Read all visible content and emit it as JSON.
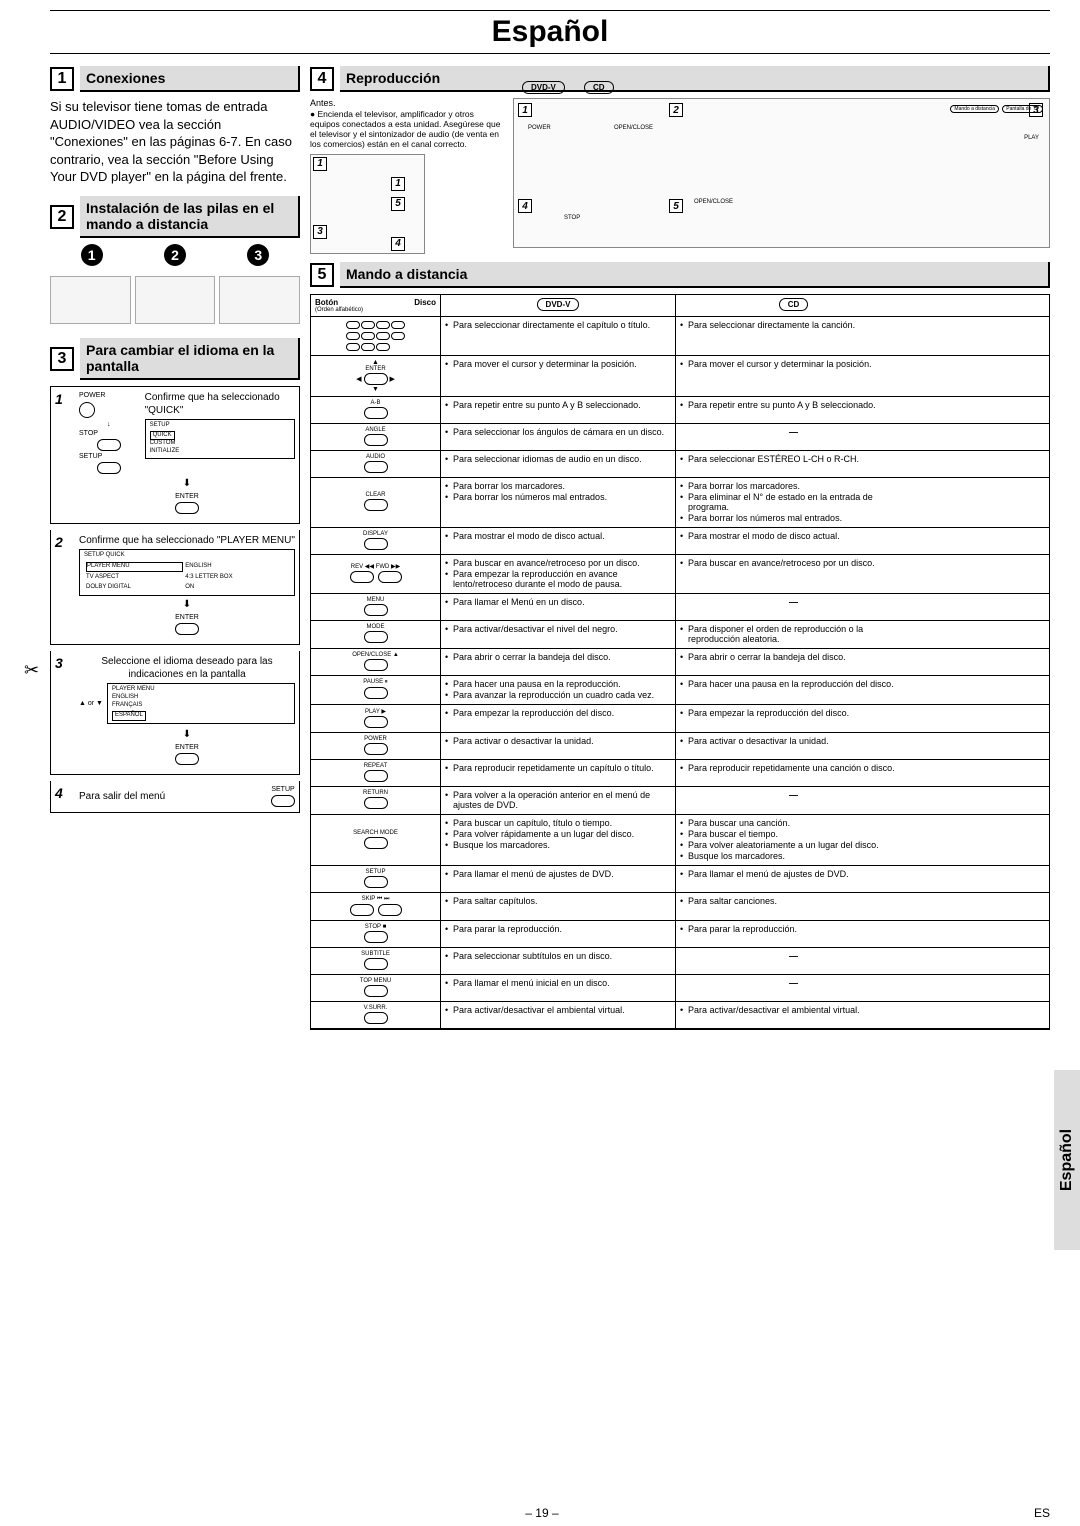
{
  "page_title": "Español",
  "page_number": "– 19 –",
  "lang_code": "ES",
  "side_tab": "Español",
  "sec1": {
    "title": "Conexiones",
    "body": "Si su televisor tiene tomas de entrada AUDIO/VIDEO vea la sección \"Conexiones\" en las páginas 6-7. En caso contrario, vea la sección \"Before Using Your DVD player\" en la página del frente."
  },
  "sec2": {
    "title": "Instalación de las pilas en el mando a distancia"
  },
  "sec3": {
    "title": "Para cambiar el idioma en la pantalla",
    "step1": "Confirme que ha seleccionado \"QUICK\"",
    "menu1_items": [
      "QUICK",
      "CUSTOM",
      "INITIALIZE"
    ],
    "step2": "Confirme que ha seleccionado \"PLAYER MENU\"",
    "menu2_header": "SETUP   QUICK",
    "menu2_rows": [
      [
        "PLAYER MENU",
        "ENGLISH"
      ],
      [
        "TV ASPECT",
        "4:3 LETTER BOX"
      ],
      [
        "DOLBY DIGITAL",
        "ON"
      ]
    ],
    "step3": "Seleccione el idioma deseado para las indicaciones en la pantalla",
    "menu3_header": "PLAYER MENU",
    "menu3_items": [
      "ENGLISH",
      "FRANÇAIS",
      "ESPAÑOL"
    ],
    "step4": "Para salir del menú",
    "labels": {
      "power": "POWER",
      "stop": "STOP",
      "setup": "SETUP",
      "enter": "ENTER",
      "or": "or"
    }
  },
  "sec4": {
    "title": "Reproducción",
    "antes": "Antes.",
    "intro": "Encienda el televisor, amplificador y otros equipos conectados a esta unidad. Asegúrese que el televisor y el sintonizador de audio (de venta en los comercios) están en el canal correcto.",
    "badges": {
      "dvd": "DVD-V",
      "cd": "CD"
    },
    "fig_labels": {
      "power": "POWER",
      "openclose": "OPEN/CLOSE",
      "play": "PLAY",
      "stop": "STOP",
      "remote": "Mando a distancia",
      "tv": "Pantalla de TV"
    }
  },
  "sec5": {
    "title": "Mando a distancia",
    "th_boton": "Botón",
    "th_boton_sub": "(Orden alfabético)",
    "th_disco": "Disco",
    "dvd_label": "DVD-V",
    "cd_label": "CD",
    "rows": [
      {
        "btn_label": "0-9 +10",
        "btn_icon_count": 11,
        "btn_type": "keypad",
        "dvd": [
          "Para seleccionar directamente el capítulo o título."
        ],
        "cd": [
          "Para seleccionar directamente la canción."
        ]
      },
      {
        "btn_label": "▲ ENTER ▼ ◀ ▶",
        "btn_type": "dpad",
        "dvd": [
          "Para mover el cursor y determinar la posición."
        ],
        "cd": [
          "Para mover el cursor y determinar la posición."
        ]
      },
      {
        "btn_label": "A-B",
        "dvd": [
          "Para repetir entre su punto A y B seleccionado."
        ],
        "cd": [
          "Para repetir entre su punto A y B seleccionado."
        ]
      },
      {
        "btn_label": "ANGLE",
        "dvd": [
          "Para seleccionar los ángulos de cámara en un disco."
        ],
        "cd": "—"
      },
      {
        "btn_label": "AUDIO",
        "dvd": [
          "Para seleccionar idiomas de audio en un disco."
        ],
        "cd": [
          "Para seleccionar ESTÉREO L-CH o R-CH."
        ]
      },
      {
        "btn_label": "CLEAR",
        "dvd": [
          "Para borrar los marcadores.",
          "Para borrar los números mal entrados."
        ],
        "cd": [
          "Para borrar los marcadores.",
          "Para eliminar el N° de estado en la entrada de programa.",
          "Para borrar los números mal entrados."
        ]
      },
      {
        "btn_label": "DISPLAY",
        "dvd": [
          "Para mostrar el modo de disco actual."
        ],
        "cd": [
          "Para mostrar el modo de disco actual."
        ]
      },
      {
        "btn_label": "REV ◀◀  FWD ▶▶",
        "btn_type": "pair",
        "dvd": [
          "Para buscar en avance/retroceso por un disco.",
          "Para empezar la reproducción en avance lento/retroceso durante el modo de pausa."
        ],
        "cd": [
          "Para buscar en avance/retroceso por un disco."
        ]
      },
      {
        "btn_label": "MENU",
        "dvd": [
          "Para llamar el Menú en un disco."
        ],
        "cd": "—"
      },
      {
        "btn_label": "MODE",
        "dvd": [
          "Para activar/desactivar el nivel del negro."
        ],
        "cd": [
          "Para disponer el orden de reproducción o la reproducción aleatoria."
        ]
      },
      {
        "btn_label": "OPEN/CLOSE ▲",
        "dvd": [
          "Para abrir o cerrar la bandeja del disco."
        ],
        "cd": [
          "Para abrir o cerrar la bandeja del disco."
        ]
      },
      {
        "btn_label": "PAUSE ⏸",
        "dvd": [
          "Para hacer una pausa en la reproducción.",
          "Para avanzar la reproducción un cuadro cada vez."
        ],
        "cd": [
          "Para hacer una pausa en la reproducción del disco."
        ]
      },
      {
        "btn_label": "PLAY ▶",
        "dvd": [
          "Para empezar la reproducción del disco."
        ],
        "cd": [
          "Para empezar la reproducción del disco."
        ]
      },
      {
        "btn_label": "POWER",
        "dvd": [
          "Para activar o desactivar la unidad."
        ],
        "cd": [
          "Para activar o desactivar la unidad."
        ]
      },
      {
        "btn_label": "REPEAT",
        "dvd": [
          "Para reproducir repetidamente un capítulo o título."
        ],
        "cd": [
          "Para reproducir repetidamente una canción o disco."
        ]
      },
      {
        "btn_label": "RETURN",
        "dvd": [
          "Para volver a la operación anterior en el menú de ajustes de DVD."
        ],
        "cd": "—"
      },
      {
        "btn_label": "SEARCH MODE",
        "dvd": [
          "Para buscar un capítulo, título o tiempo.",
          "Para volver rápidamente a un lugar del disco.",
          "Busque los marcadores."
        ],
        "cd": [
          "Para buscar una canción.",
          "Para buscar el tiempo.",
          "Para volver aleatoriamente a un lugar del disco.",
          "Busque los marcadores."
        ]
      },
      {
        "btn_label": "SETUP",
        "dvd": [
          "Para llamar el menú de ajustes de DVD."
        ],
        "cd": [
          "Para llamar el menú de ajustes de DVD."
        ]
      },
      {
        "btn_label": "SKIP ⏮ ⏭",
        "btn_type": "pair",
        "dvd": [
          "Para saltar capítulos."
        ],
        "cd": [
          "Para saltar canciones."
        ]
      },
      {
        "btn_label": "STOP ■",
        "dvd": [
          "Para parar la reproducción."
        ],
        "cd": [
          "Para parar la reproducción."
        ]
      },
      {
        "btn_label": "SUBTITLE",
        "dvd": [
          "Para seleccionar subtítulos en un disco."
        ],
        "cd": "—"
      },
      {
        "btn_label": "TOP MENU",
        "dvd": [
          "Para llamar el menú inicial en un disco."
        ],
        "cd": "—"
      },
      {
        "btn_label": "V.SURR.",
        "dvd": [
          "Para activar/desactivar el ambiental virtual."
        ],
        "cd": [
          "Para activar/desactivar el ambiental virtual."
        ]
      }
    ]
  }
}
